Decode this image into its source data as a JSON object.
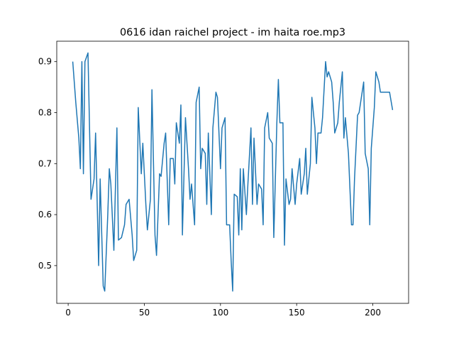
{
  "chart_data": {
    "type": "line",
    "title": "0616 idan raichel project - im haita roe.mp3",
    "x": [
      3,
      5,
      7,
      8,
      9,
      10,
      11,
      13,
      15,
      17,
      18,
      20,
      21,
      23,
      24,
      26,
      27,
      28,
      30,
      32,
      33,
      35,
      37,
      38,
      40,
      42,
      43,
      45,
      46,
      48,
      49,
      51,
      52,
      54,
      55,
      57,
      58,
      60,
      61,
      63,
      64,
      66,
      67,
      69,
      70,
      71,
      73,
      74,
      75,
      77,
      79,
      80,
      81,
      83,
      84,
      86,
      87,
      88,
      90,
      91,
      92,
      94,
      95,
      97,
      98,
      100,
      101,
      103,
      104,
      106,
      107,
      108,
      109,
      111,
      112,
      113,
      114,
      115,
      117,
      118,
      120,
      121,
      122,
      124,
      125,
      127,
      128,
      129,
      131,
      132,
      134,
      135,
      137,
      138,
      139,
      141,
      142,
      143,
      145,
      146,
      147,
      149,
      150,
      152,
      153,
      155,
      156,
      157,
      159,
      160,
      162,
      163,
      164,
      166,
      167,
      169,
      170,
      171,
      173,
      174,
      175,
      177,
      178,
      180,
      181,
      182,
      184,
      186,
      187,
      188,
      190,
      191,
      193,
      194,
      195,
      197,
      198,
      199,
      201,
      202,
      204,
      205,
      211,
      213
    ],
    "series": [
      {
        "color": "#1f77b4",
        "values": [
          0.9,
          0.82,
          0.75,
          0.69,
          0.9,
          0.68,
          0.9,
          0.917,
          0.63,
          0.67,
          0.76,
          0.5,
          0.67,
          0.46,
          0.45,
          0.6,
          0.69,
          0.66,
          0.53,
          0.77,
          0.55,
          0.555,
          0.58,
          0.62,
          0.63,
          0.56,
          0.51,
          0.53,
          0.81,
          0.68,
          0.74,
          0.62,
          0.57,
          0.63,
          0.845,
          0.56,
          0.52,
          0.68,
          0.675,
          0.74,
          0.76,
          0.58,
          0.71,
          0.71,
          0.66,
          0.78,
          0.74,
          0.815,
          0.56,
          0.79,
          0.69,
          0.63,
          0.66,
          0.58,
          0.82,
          0.85,
          0.69,
          0.73,
          0.72,
          0.62,
          0.76,
          0.6,
          0.77,
          0.84,
          0.83,
          0.69,
          0.77,
          0.79,
          0.58,
          0.58,
          0.51,
          0.45,
          0.64,
          0.635,
          0.56,
          0.69,
          0.57,
          0.69,
          0.6,
          0.66,
          0.77,
          0.62,
          0.75,
          0.62,
          0.66,
          0.65,
          0.58,
          0.77,
          0.8,
          0.75,
          0.74,
          0.555,
          0.78,
          0.865,
          0.78,
          0.78,
          0.54,
          0.67,
          0.62,
          0.63,
          0.69,
          0.62,
          0.66,
          0.71,
          0.64,
          0.68,
          0.73,
          0.64,
          0.7,
          0.83,
          0.77,
          0.7,
          0.76,
          0.76,
          0.79,
          0.9,
          0.87,
          0.88,
          0.86,
          0.82,
          0.76,
          0.78,
          0.82,
          0.88,
          0.75,
          0.79,
          0.72,
          0.58,
          0.58,
          0.67,
          0.795,
          0.8,
          0.84,
          0.86,
          0.72,
          0.69,
          0.58,
          0.73,
          0.81,
          0.88,
          0.86,
          0.84,
          0.84,
          0.805
        ]
      }
    ],
    "xlim": [
      -7.5,
      223.5
    ],
    "ylim": [
      0.426,
      0.94
    ],
    "xticks": [
      0,
      50,
      100,
      150,
      200
    ],
    "yticks": [
      0.5,
      0.6,
      0.7,
      0.8,
      0.9
    ]
  }
}
